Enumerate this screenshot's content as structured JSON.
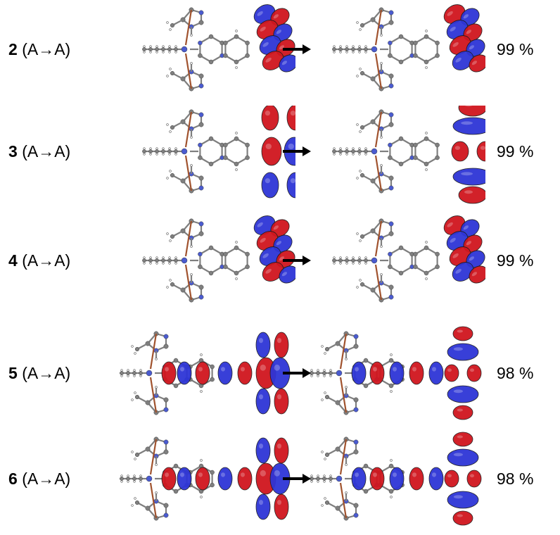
{
  "rows": [
    {
      "compound": "2",
      "transition": "(A→A)",
      "percent": "99 %",
      "kind": "twist"
    },
    {
      "compound": "3",
      "transition": "(A→A)",
      "percent": "99 %",
      "kind": "flat"
    },
    {
      "compound": "4",
      "transition": "(A→A)",
      "percent": "99 %",
      "kind": "twist"
    },
    {
      "compound": "5",
      "transition": "(A→A)",
      "percent": "98 %",
      "kind": "long"
    },
    {
      "compound": "6",
      "transition": "(A→A)",
      "percent": "98 %",
      "kind": "long"
    }
  ],
  "colors": {
    "orbital_positive": "#d0161e",
    "orbital_negative": "#2e35d6",
    "carbon": "#7f7f7f",
    "nitrogen": "#4a5bd0",
    "hydrogen": "#e8e8e8",
    "arrow": "#000000"
  }
}
